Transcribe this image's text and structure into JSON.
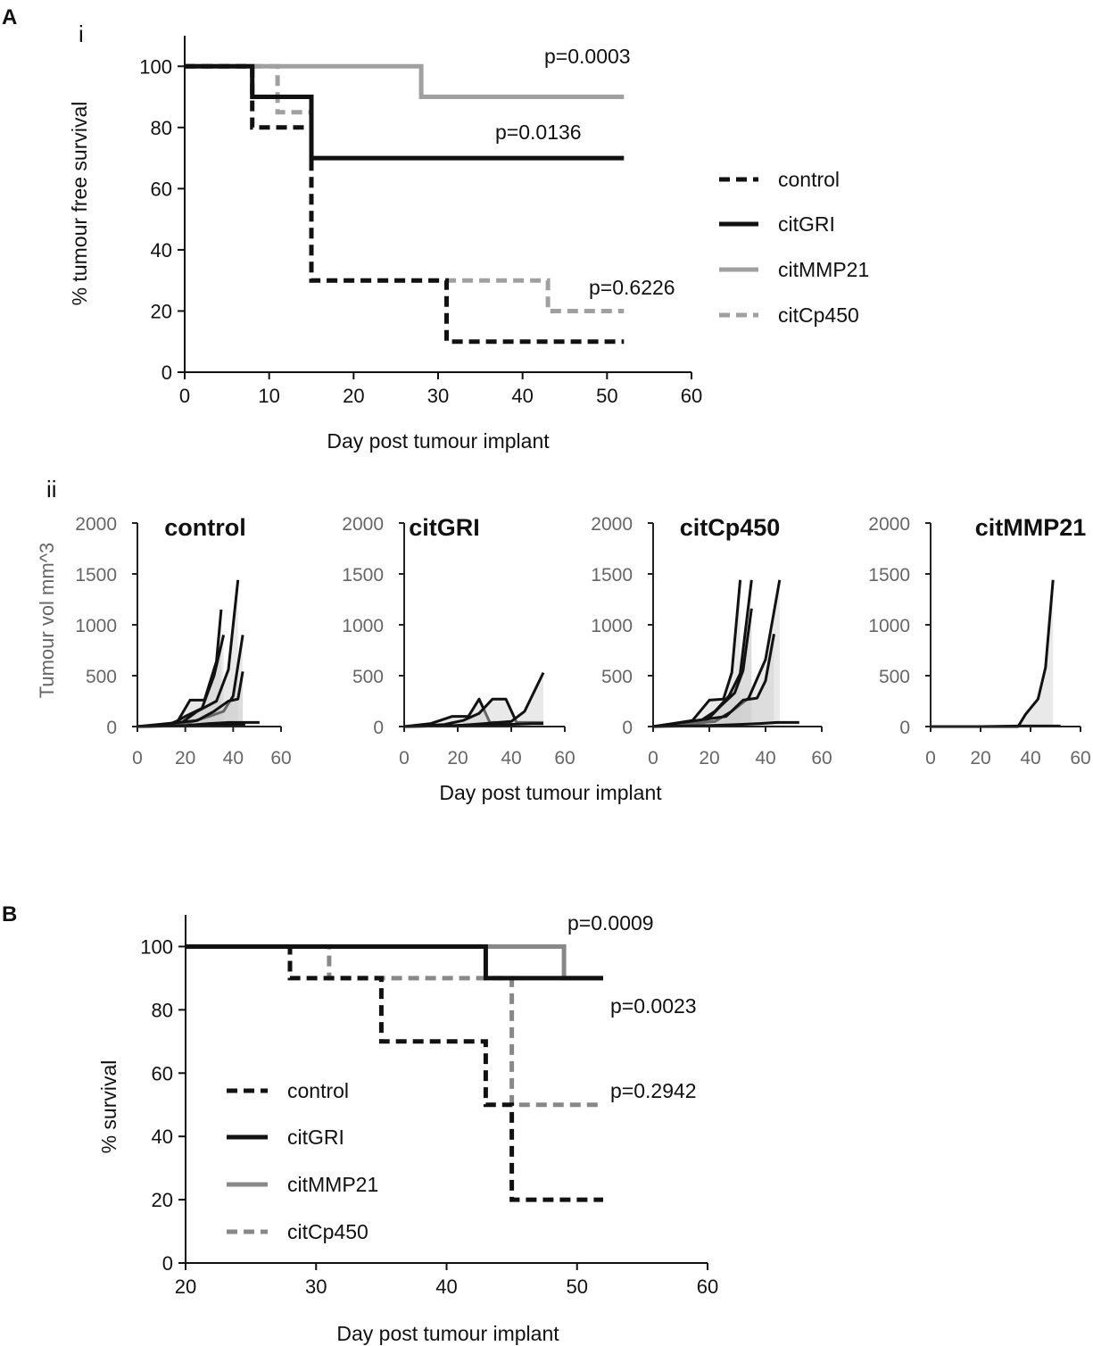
{
  "panels": {
    "A": "A",
    "B": "B",
    "A_i": "i",
    "A_ii": "ii"
  },
  "chart_data": [
    {
      "id": "A-i",
      "type": "line",
      "subtype": "kaplan-meier",
      "xlabel": "Day post tumour implant",
      "ylabel": "% tumour free survival",
      "xlim": [
        0,
        60
      ],
      "ylim": [
        0,
        110
      ],
      "xticks": [
        0,
        10,
        20,
        30,
        40,
        50,
        60
      ],
      "yticks": [
        0,
        20,
        40,
        60,
        80,
        100
      ],
      "legend_position": "right",
      "series": [
        {
          "name": "control",
          "color": "#111111",
          "style": "dashed",
          "x": [
            0,
            8,
            8,
            15,
            15,
            31,
            31,
            52
          ],
          "y": [
            100,
            100,
            80,
            80,
            30,
            30,
            10,
            10
          ]
        },
        {
          "name": "citGRI",
          "color": "#111111",
          "style": "solid",
          "x": [
            0,
            8,
            8,
            15,
            15,
            52
          ],
          "y": [
            100,
            100,
            90,
            90,
            70,
            70
          ]
        },
        {
          "name": "citMMP21",
          "color": "#a0a0a0",
          "style": "solid",
          "x": [
            0,
            28,
            28,
            52
          ],
          "y": [
            100,
            100,
            90,
            90
          ]
        },
        {
          "name": "citCp450",
          "color": "#a0a0a0",
          "style": "dashed",
          "x": [
            0,
            11,
            11,
            15,
            15,
            43,
            43,
            52
          ],
          "y": [
            100,
            100,
            85,
            85,
            30,
            30,
            20,
            20
          ]
        }
      ],
      "annotations": [
        {
          "text": "p=0.0003",
          "x": 43,
          "y": 104
        },
        {
          "text": "p=0.0136",
          "x": 37,
          "y": 84
        },
        {
          "text": "p=0.6226",
          "x": 48,
          "y": 26
        }
      ]
    },
    {
      "id": "A-ii",
      "type": "line",
      "subtype": "spider-plot-panels",
      "xlabel": "Day post tumour implant",
      "ylabel": "Tumour vol mm^3",
      "xlim": [
        0,
        60
      ],
      "ylim": [
        0,
        2000
      ],
      "xticks": [
        0,
        20,
        40,
        60
      ],
      "yticks": [
        0,
        500,
        1000,
        1500,
        2000
      ],
      "subplots": [
        {
          "title": "control",
          "lines": [
            {
              "x": [
                0,
                12,
                17,
                22,
                28,
                33,
                35
              ],
              "y": [
                0,
                10,
                60,
                260,
                260,
                640,
                1150
              ]
            },
            {
              "x": [
                0,
                14,
                20,
                27,
                32,
                36
              ],
              "y": [
                0,
                20,
                100,
                180,
                500,
                900
              ]
            },
            {
              "x": [
                0,
                18,
                25,
                33,
                38,
                42
              ],
              "y": [
                0,
                30,
                150,
                250,
                560,
                1440
              ]
            },
            {
              "x": [
                0,
                22,
                30,
                36,
                40,
                44
              ],
              "y": [
                0,
                40,
                100,
                150,
                300,
                900
              ]
            },
            {
              "x": [
                0,
                25,
                32,
                38,
                42,
                44
              ],
              "y": [
                0,
                60,
                150,
                250,
                270,
                540
              ]
            },
            {
              "x": [
                0,
                20,
                30,
                38,
                45,
                51
              ],
              "y": [
                0,
                10,
                30,
                40,
                40,
                40
              ]
            },
            {
              "x": [
                0,
                15,
                25,
                35,
                45
              ],
              "y": [
                0,
                5,
                10,
                15,
                20
              ]
            }
          ]
        },
        {
          "title": "citGRI",
          "lines": [
            {
              "x": [
                0,
                10,
                18,
                24,
                28,
                32,
                40
              ],
              "y": [
                0,
                30,
                100,
                100,
                270,
                40,
                40
              ]
            },
            {
              "x": [
                0,
                15,
                22,
                28,
                33,
                38,
                42,
                52
              ],
              "y": [
                0,
                20,
                60,
                130,
                270,
                270,
                40,
                40
              ]
            },
            {
              "x": [
                0,
                20,
                30,
                40,
                45,
                52
              ],
              "y": [
                0,
                10,
                30,
                50,
                150,
                530
              ]
            },
            {
              "x": [
                0,
                18,
                28,
                38,
                48,
                52
              ],
              "y": [
                0,
                10,
                20,
                20,
                30,
                30
              ]
            }
          ]
        },
        {
          "title": "citCp450",
          "lines": [
            {
              "x": [
                0,
                14,
                20,
                25,
                28,
                31
              ],
              "y": [
                0,
                60,
                260,
                270,
                530,
                1440
              ]
            },
            {
              "x": [
                0,
                16,
                22,
                27,
                31,
                35
              ],
              "y": [
                0,
                40,
                150,
                300,
                520,
                1440
              ]
            },
            {
              "x": [
                0,
                18,
                24,
                29,
                32,
                35
              ],
              "y": [
                0,
                30,
                200,
                330,
                550,
                1160
              ]
            },
            {
              "x": [
                0,
                22,
                28,
                34,
                40,
                45
              ],
              "y": [
                0,
                50,
                150,
                280,
                660,
                1440
              ]
            },
            {
              "x": [
                0,
                26,
                32,
                37,
                40,
                43
              ],
              "y": [
                0,
                100,
                260,
                280,
                450,
                910
              ]
            },
            {
              "x": [
                0,
                20,
                30,
                38,
                44,
                52
              ],
              "y": [
                0,
                10,
                20,
                30,
                40,
                40
              ]
            }
          ]
        },
        {
          "title": "citMMP21",
          "lines": [
            {
              "x": [
                0,
                35,
                38,
                43,
                46,
                49
              ],
              "y": [
                0,
                0,
                120,
                270,
                580,
                1440
              ]
            },
            {
              "x": [
                0,
                20,
                35,
                52
              ],
              "y": [
                0,
                0,
                5,
                5
              ]
            }
          ]
        }
      ]
    },
    {
      "id": "B",
      "type": "line",
      "subtype": "kaplan-meier",
      "xlabel": "Day post tumour implant",
      "ylabel": "% survival",
      "xlim": [
        20,
        60
      ],
      "ylim": [
        0,
        110
      ],
      "xticks": [
        20,
        30,
        40,
        50,
        60
      ],
      "yticks": [
        0,
        20,
        40,
        60,
        80,
        100
      ],
      "legend_position": "bottom-left",
      "series": [
        {
          "name": "control",
          "color": "#111111",
          "style": "dashed",
          "x": [
            20,
            28,
            28,
            35,
            35,
            43,
            43,
            45,
            45,
            52
          ],
          "y": [
            100,
            100,
            90,
            90,
            70,
            70,
            50,
            50,
            20,
            20
          ]
        },
        {
          "name": "citGRI",
          "color": "#111111",
          "style": "solid",
          "x": [
            20,
            43,
            43,
            52
          ],
          "y": [
            100,
            100,
            90,
            90
          ]
        },
        {
          "name": "citMMP21",
          "color": "#888888",
          "style": "solid",
          "x": [
            20,
            49,
            49,
            52
          ],
          "y": [
            100,
            100,
            90,
            90
          ]
        },
        {
          "name": "citCp450",
          "color": "#888888",
          "style": "dashed",
          "x": [
            20,
            31,
            31,
            45,
            45,
            52
          ],
          "y": [
            100,
            100,
            90,
            90,
            50,
            50
          ]
        }
      ],
      "annotations": [
        {
          "text": "p=0.0009",
          "x": 49,
          "y": 107
        },
        {
          "text": "p=0.0023",
          "x": 52,
          "y": 84
        },
        {
          "text": "p=0.2942",
          "x": 52,
          "y": 62
        }
      ]
    }
  ]
}
